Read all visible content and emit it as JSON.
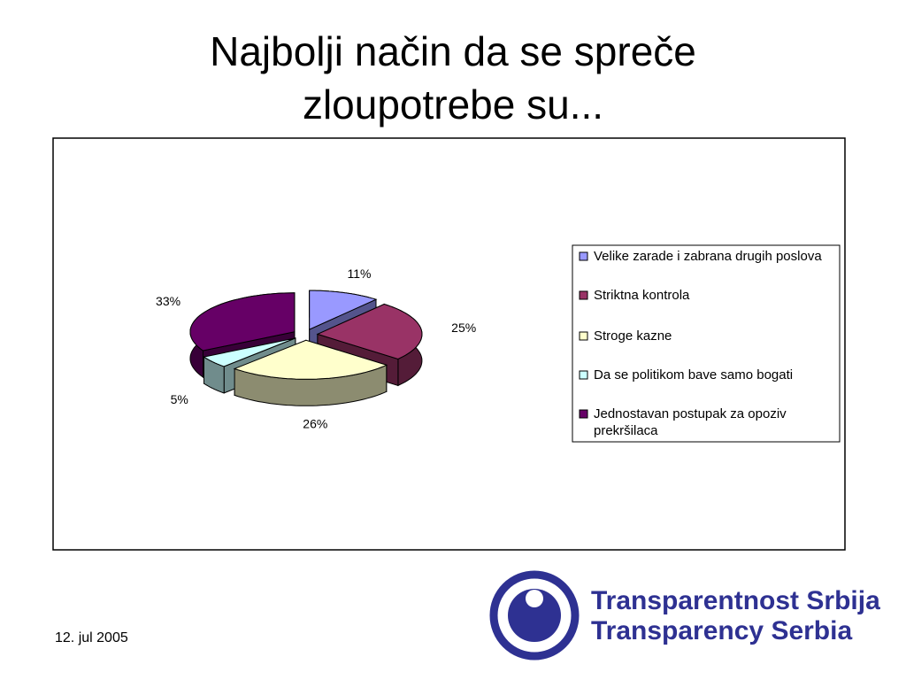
{
  "chart_data": {
    "type": "pie3d",
    "title": "Najbolji način da se spreče zloupotrebe su...",
    "categories": [
      "Velike zarade i zabrana drugih poslova",
      "Striktna kontrola",
      "Stroge kazne",
      "Da se politikom bave samo bogati",
      "Jednostavan postupak za opoziv prekršilaca"
    ],
    "values": [
      11,
      25,
      26,
      5,
      33
    ],
    "value_labels": [
      "11%",
      "25%",
      "26%",
      "5%",
      "33%"
    ],
    "colors": [
      "#9999ff",
      "#993366",
      "#ffffcc",
      "#ccffff",
      "#660066"
    ],
    "legend": "right"
  },
  "footer": {
    "date": "12. jul 2005",
    "logo": [
      "Transparentnost Srbija",
      "Transparency Serbia"
    ]
  }
}
